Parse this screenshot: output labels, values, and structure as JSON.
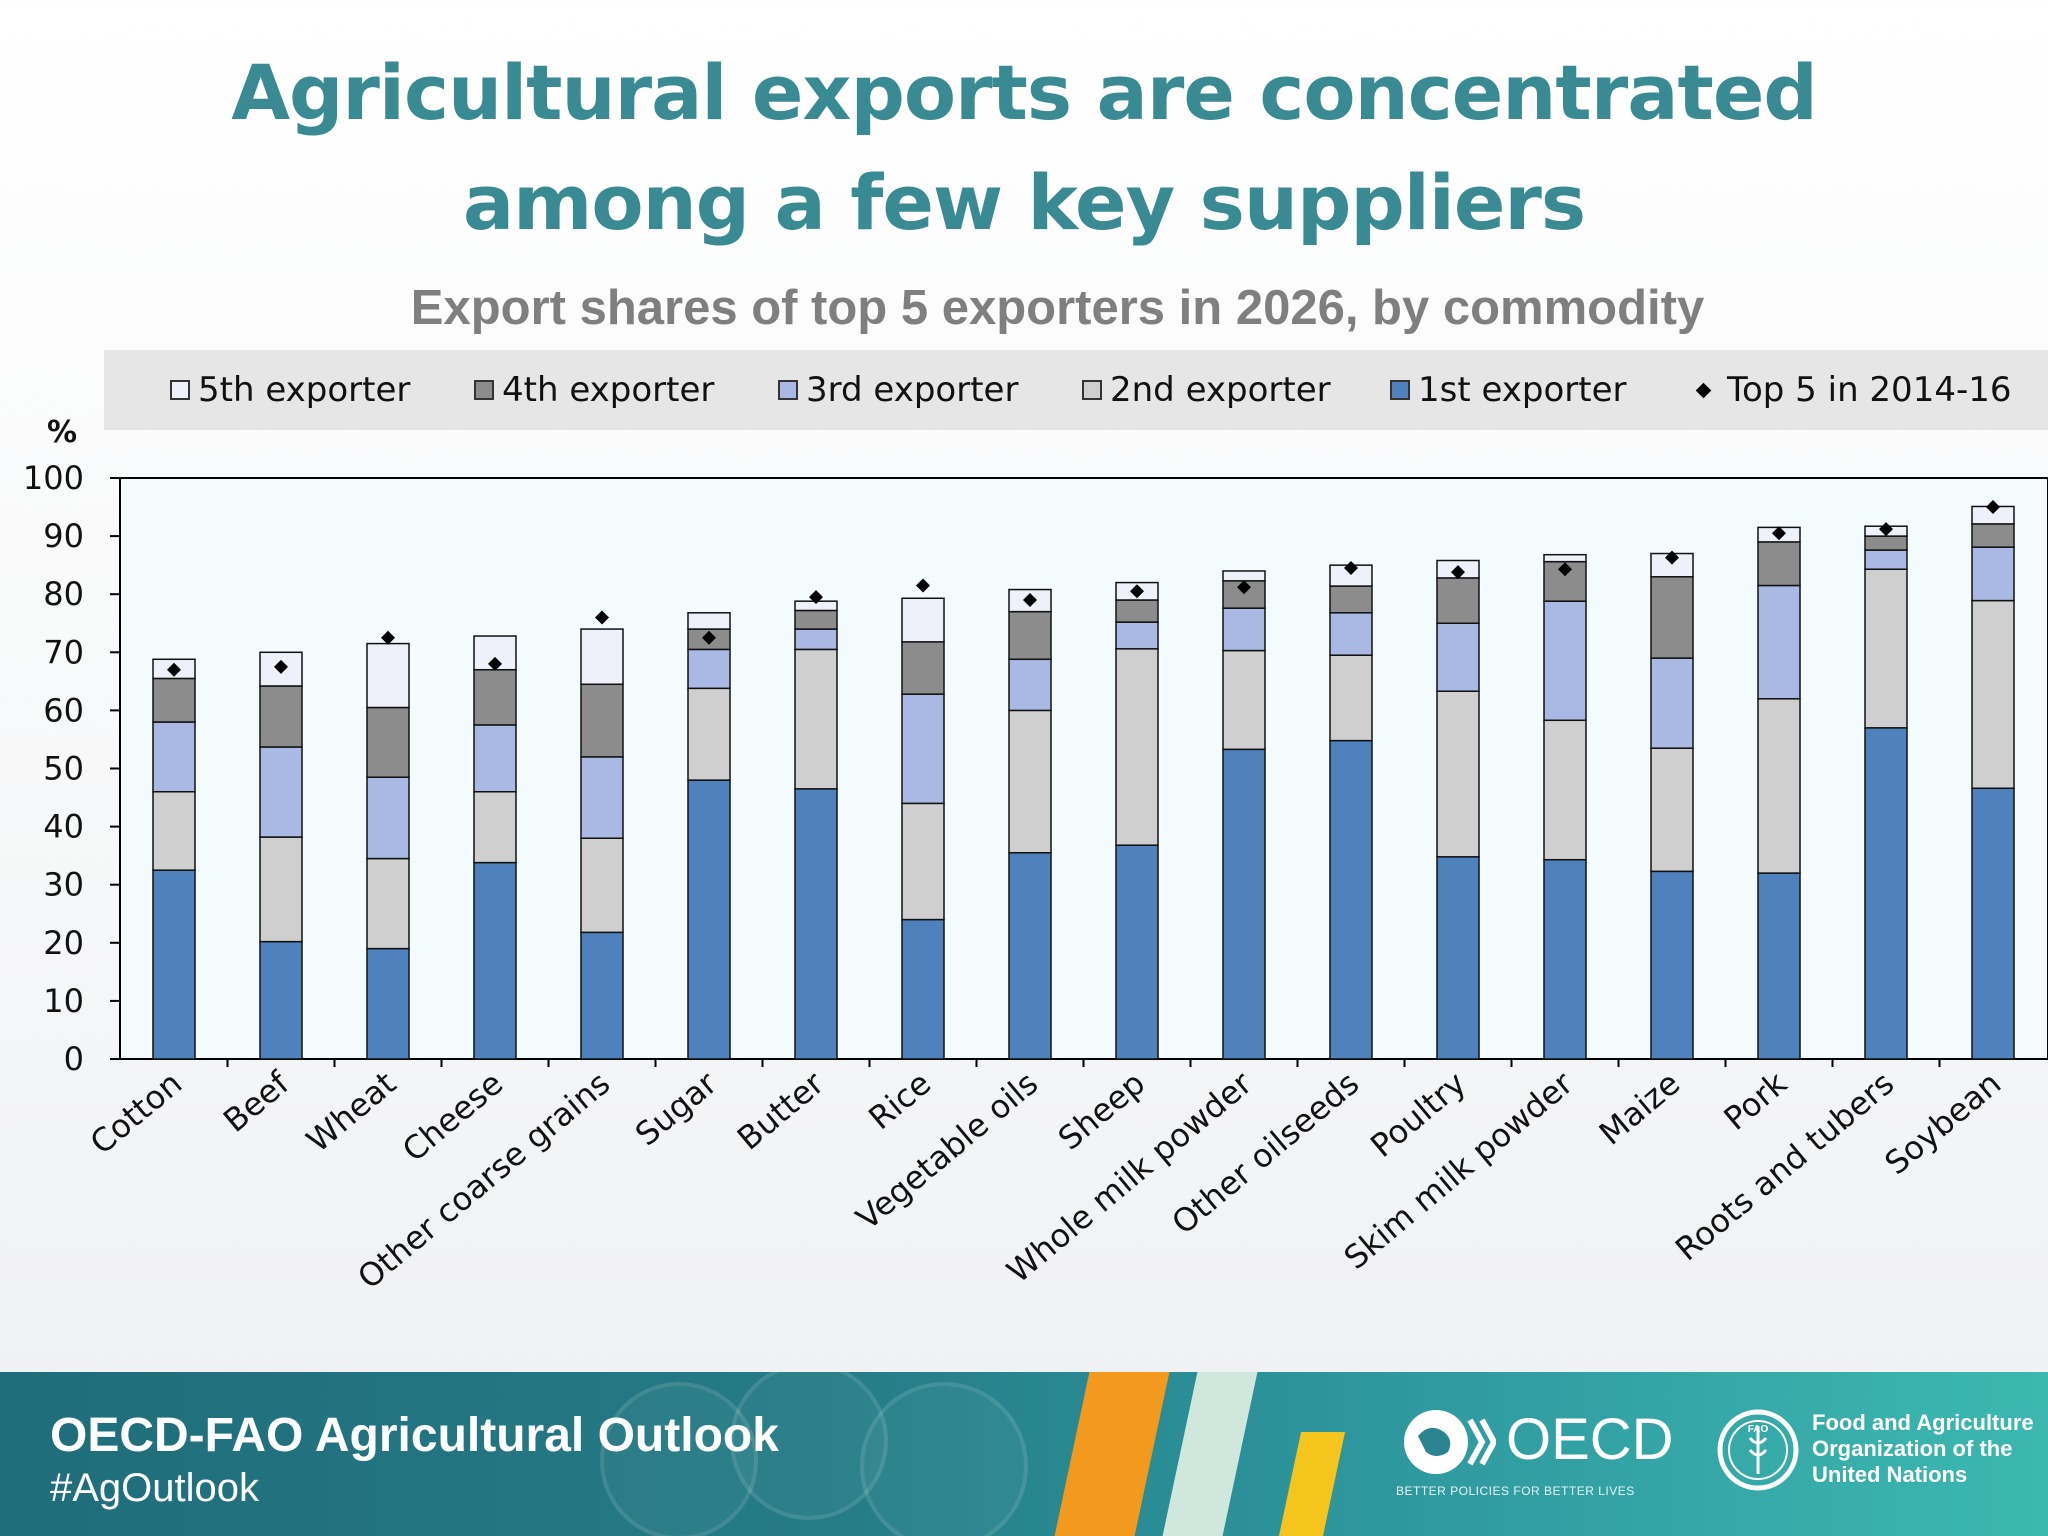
{
  "slide": {
    "title_line1": "Agricultural exports are concentrated",
    "title_line2": "among a few key suppliers"
  },
  "chart_data": {
    "type": "bar",
    "stacked": true,
    "title": "Export shares of top 5 exporters in 2026, by commodity",
    "ylabel": "%",
    "xlabel": "",
    "ylim": [
      0,
      100
    ],
    "yticks": [
      0,
      10,
      20,
      30,
      40,
      50,
      60,
      70,
      80,
      90,
      100
    ],
    "grid": false,
    "legend_position": "top",
    "categories": [
      "Cotton",
      "Beef",
      "Wheat",
      "Cheese",
      "Other coarse grains",
      "Sugar",
      "Butter",
      "Rice",
      "Vegetable oils",
      "Sheep",
      "Whole milk powder",
      "Other oilseeds",
      "Poultry",
      "Skim milk powder",
      "Maize",
      "Pork",
      "Roots and tubers",
      "Soybean"
    ],
    "series": [
      {
        "name": "1st exporter",
        "color": "#4f81bd",
        "values": [
          32.5,
          20.2,
          19.0,
          33.8,
          21.8,
          48.0,
          46.5,
          24.0,
          35.5,
          36.8,
          53.3,
          54.8,
          34.8,
          34.3,
          32.3,
          32.0,
          57.0,
          46.6
        ]
      },
      {
        "name": "2nd exporter",
        "color": "#cfcfcf",
        "values": [
          13.5,
          18.0,
          15.5,
          12.2,
          16.2,
          15.8,
          24.0,
          20.0,
          24.5,
          33.8,
          17.0,
          14.7,
          28.5,
          24.0,
          21.2,
          30.0,
          27.3,
          32.3
        ]
      },
      {
        "name": "3rd exporter",
        "color": "#a9b9e3",
        "values": [
          12.0,
          15.5,
          14.0,
          11.5,
          14.0,
          6.7,
          3.5,
          18.8,
          8.8,
          4.6,
          7.3,
          7.3,
          11.7,
          20.5,
          15.5,
          19.5,
          3.3,
          9.2
        ]
      },
      {
        "name": "4th exporter",
        "color": "#8c8c8c",
        "values": [
          7.5,
          10.5,
          12.0,
          9.5,
          12.5,
          3.5,
          3.2,
          9.0,
          8.2,
          3.8,
          4.7,
          4.6,
          7.8,
          6.8,
          14.0,
          7.5,
          2.4,
          4.0
        ]
      },
      {
        "name": "5th exporter",
        "color": "#eef1fa",
        "values": [
          3.3,
          5.8,
          11.0,
          5.8,
          9.5,
          2.8,
          1.6,
          7.5,
          3.8,
          3.0,
          1.7,
          3.6,
          3.0,
          1.2,
          4.0,
          2.5,
          1.7,
          3.0
        ]
      }
    ],
    "marker_series": {
      "name": "Top 5 in 2014-16",
      "marker": "diamond",
      "color": "#000000",
      "values": [
        67.0,
        67.5,
        72.5,
        68.0,
        76.0,
        72.5,
        79.5,
        81.5,
        79.0,
        80.5,
        81.2,
        84.5,
        83.8,
        84.3,
        86.3,
        90.5,
        91.2,
        95.0
      ]
    }
  },
  "legend": [
    {
      "label": "5th exporter",
      "color": "#eef1fa"
    },
    {
      "label": "4th exporter",
      "color": "#8c8c8c"
    },
    {
      "label": "3rd exporter",
      "color": "#a9b9e3"
    },
    {
      "label": "2nd exporter",
      "color": "#cfcfcf"
    },
    {
      "label": "1st exporter",
      "color": "#4f81bd"
    },
    {
      "label": "Top 5 in 2014-16",
      "color": "#000000"
    }
  ],
  "footer": {
    "title": "OECD-FAO Agricultural Outlook",
    "hashtag": "#AgOutlook",
    "oecd_name": "OECD",
    "oecd_tagline": "BETTER POLICIES FOR BETTER LIVES",
    "fao_line1": "Food and Agriculture",
    "fao_line2": "Organization of the",
    "fao_line3": "United Nations",
    "fao_emblem": "FAO"
  }
}
